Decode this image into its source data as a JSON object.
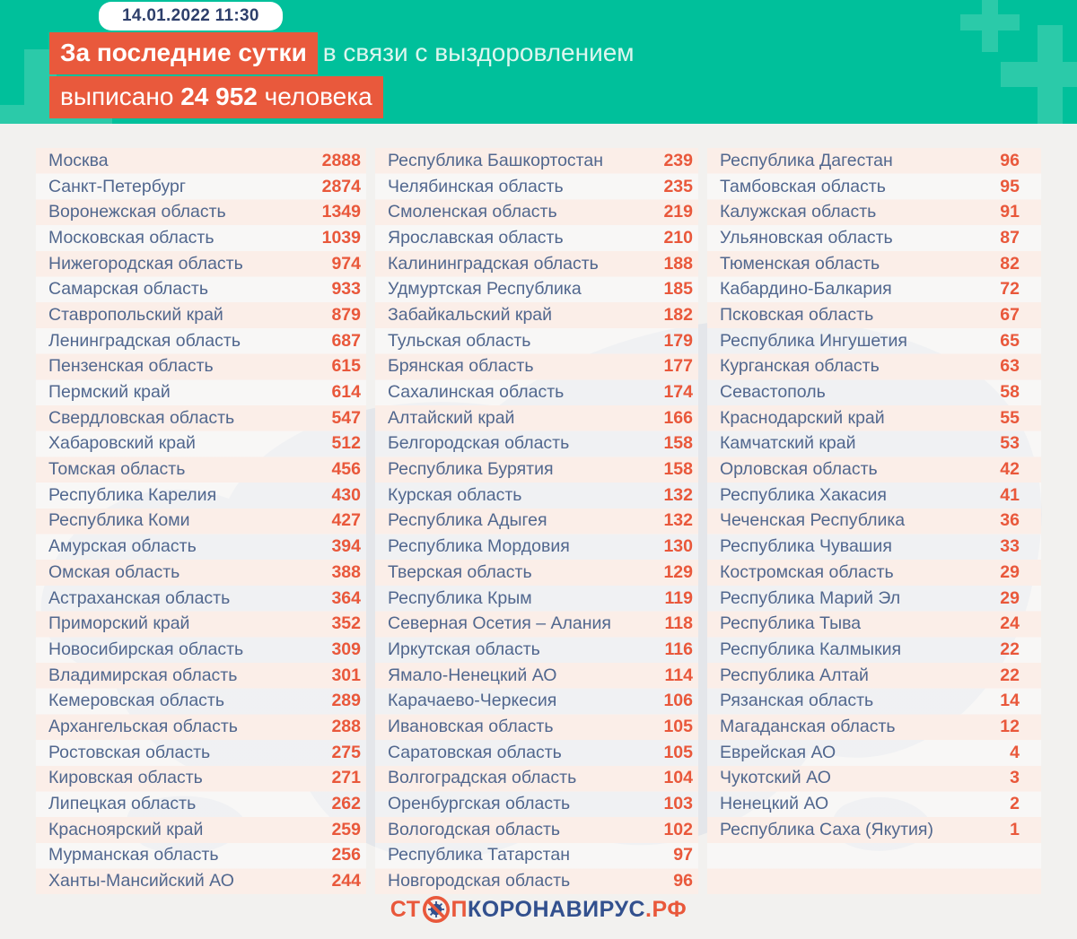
{
  "header": {
    "timestamp": "14.01.2022 11:30",
    "title_highlight": "За последние сутки",
    "title_plain": "в связи с выздоровлением",
    "line2_prefix": "выписано",
    "line2_number": "24 952",
    "line2_suffix": "человека"
  },
  "footer_logo": {
    "part1": "СТ",
    "icon": "no-virus-icon",
    "part2": "П",
    "part3": "КОРОНАВИРУС",
    "part4": ".РФ"
  },
  "colors": {
    "header_teal": "#00c09b",
    "plus_teal": "#2bcaa9",
    "accent_orange": "#e9593c",
    "value_orange": "#e9583b",
    "region_blue": "#51678e",
    "date_navy": "#2d3f6b",
    "logo_navy": "#32508e",
    "body_gray": "#f2f1ef",
    "stripe_pink": "#fbeee8",
    "map_gray": "#d8dde6"
  },
  "chart_data": {
    "type": "table",
    "title": "За последние сутки в связи с выздоровлением выписано 24 952 человека",
    "date": "14.01.2022 11:30",
    "total_discharged": 24952,
    "columns": [
      [
        {
          "r": "Москва",
          "v": 2888
        },
        {
          "r": "Санкт-Петербург",
          "v": 2874
        },
        {
          "r": "Воронежская область",
          "v": 1349
        },
        {
          "r": "Московская область",
          "v": 1039
        },
        {
          "r": "Нижегородская область",
          "v": 974
        },
        {
          "r": "Самарская область",
          "v": 933
        },
        {
          "r": "Ставропольский край",
          "v": 879
        },
        {
          "r": "Ленинградская область",
          "v": 687
        },
        {
          "r": "Пензенская область",
          "v": 615
        },
        {
          "r": "Пермский край",
          "v": 614
        },
        {
          "r": "Свердловская область",
          "v": 547
        },
        {
          "r": "Хабаровский край",
          "v": 512
        },
        {
          "r": "Томская область",
          "v": 456
        },
        {
          "r": "Республика Карелия",
          "v": 430
        },
        {
          "r": "Республика Коми",
          "v": 427
        },
        {
          "r": "Амурская область",
          "v": 394
        },
        {
          "r": "Омская область",
          "v": 388
        },
        {
          "r": "Астраханская область",
          "v": 364
        },
        {
          "r": "Приморский край",
          "v": 352
        },
        {
          "r": "Новосибирская область",
          "v": 309
        },
        {
          "r": "Владимирская область",
          "v": 301
        },
        {
          "r": "Кемеровская область",
          "v": 289
        },
        {
          "r": "Архангельская область",
          "v": 288
        },
        {
          "r": "Ростовская область",
          "v": 275
        },
        {
          "r": "Кировская область",
          "v": 271
        },
        {
          "r": "Липецкая область",
          "v": 262
        },
        {
          "r": "Красноярский край",
          "v": 259
        },
        {
          "r": "Мурманская область",
          "v": 256
        },
        {
          "r": "Ханты-Мансийский АО",
          "v": 244
        }
      ],
      [
        {
          "r": "Республика Башкортостан",
          "v": 239
        },
        {
          "r": "Челябинская область",
          "v": 235
        },
        {
          "r": "Смоленская область",
          "v": 219
        },
        {
          "r": "Ярославская область",
          "v": 210
        },
        {
          "r": "Калининградская область",
          "v": 188
        },
        {
          "r": "Удмуртская Республика",
          "v": 185
        },
        {
          "r": "Забайкальский край",
          "v": 182
        },
        {
          "r": "Тульская область",
          "v": 179
        },
        {
          "r": "Брянская область",
          "v": 177
        },
        {
          "r": "Сахалинская область",
          "v": 174
        },
        {
          "r": "Алтайский край",
          "v": 166
        },
        {
          "r": "Белгородская область",
          "v": 158
        },
        {
          "r": "Республика Бурятия",
          "v": 158
        },
        {
          "r": "Курская область",
          "v": 132
        },
        {
          "r": "Республика Адыгея",
          "v": 132
        },
        {
          "r": "Республика Мордовия",
          "v": 130
        },
        {
          "r": "Тверская область",
          "v": 129
        },
        {
          "r": "Республика Крым",
          "v": 119
        },
        {
          "r": "Северная Осетия – Алания",
          "v": 118
        },
        {
          "r": "Иркутская область",
          "v": 116
        },
        {
          "r": "Ямало-Ненецкий АО",
          "v": 114
        },
        {
          "r": "Карачаево-Черкесия",
          "v": 106
        },
        {
          "r": "Ивановская область",
          "v": 105
        },
        {
          "r": "Саратовская область",
          "v": 105
        },
        {
          "r": "Волгоградская область",
          "v": 104
        },
        {
          "r": "Оренбургская область",
          "v": 103
        },
        {
          "r": "Вологодская область",
          "v": 102
        },
        {
          "r": "Республика Татарстан",
          "v": 97
        },
        {
          "r": "Новгородская область",
          "v": 96
        }
      ],
      [
        {
          "r": "Республика Дагестан",
          "v": 96
        },
        {
          "r": "Тамбовская область",
          "v": 95
        },
        {
          "r": "Калужская область",
          "v": 91
        },
        {
          "r": "Ульяновская область",
          "v": 87
        },
        {
          "r": "Тюменская область",
          "v": 82
        },
        {
          "r": "Кабардино-Балкария",
          "v": 72
        },
        {
          "r": "Псковская область",
          "v": 67
        },
        {
          "r": "Республика Ингушетия",
          "v": 65
        },
        {
          "r": "Курганская область",
          "v": 63
        },
        {
          "r": "Севастополь",
          "v": 58
        },
        {
          "r": "Краснодарский край",
          "v": 55
        },
        {
          "r": "Камчатский край",
          "v": 53
        },
        {
          "r": "Орловская область",
          "v": 42
        },
        {
          "r": "Республика Хакасия",
          "v": 41
        },
        {
          "r": "Чеченская Республика",
          "v": 36
        },
        {
          "r": "Республика Чувашия",
          "v": 33
        },
        {
          "r": "Костромская область",
          "v": 29
        },
        {
          "r": "Республика Марий Эл",
          "v": 29
        },
        {
          "r": "Республика Тыва",
          "v": 24
        },
        {
          "r": "Республика Калмыкия",
          "v": 22
        },
        {
          "r": "Республика Алтай",
          "v": 22
        },
        {
          "r": "Рязанская область",
          "v": 14
        },
        {
          "r": "Магаданская область",
          "v": 12
        },
        {
          "r": "Еврейская АО",
          "v": 4
        },
        {
          "r": "Чукотский АО",
          "v": 3
        },
        {
          "r": "Ненецкий АО",
          "v": 2
        },
        {
          "r": "Республика Саха (Якутия)",
          "v": 1
        }
      ]
    ]
  }
}
